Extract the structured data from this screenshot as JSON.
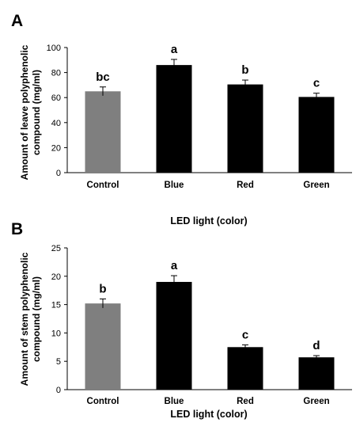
{
  "chart_data": [
    {
      "panel": "A",
      "type": "bar",
      "categories": [
        "Control",
        "Blue",
        "Red",
        "Green"
      ],
      "values": [
        65,
        86,
        70.5,
        60.5
      ],
      "errors": [
        3.5,
        4.5,
        3.5,
        3
      ],
      "letters": [
        "bc",
        "a",
        "b",
        "c"
      ],
      "colors": [
        "#7f7f7f",
        "#000000",
        "#000000",
        "#000000"
      ],
      "ylabel_lines": [
        "Amount of leave polyphenolic",
        "compound (mg/ml)"
      ],
      "xlabel": "LED light (color)",
      "ylim": [
        0,
        100
      ],
      "yticks": [
        0,
        20,
        40,
        60,
        80,
        100
      ],
      "grid": false
    },
    {
      "panel": "B",
      "type": "bar",
      "categories": [
        "Control",
        "Blue",
        "Red",
        "Green"
      ],
      "values": [
        15.2,
        19,
        7.5,
        5.7
      ],
      "errors": [
        0.8,
        1.1,
        0.4,
        0.3
      ],
      "letters": [
        "b",
        "a",
        "c",
        "d"
      ],
      "colors": [
        "#7f7f7f",
        "#000000",
        "#000000",
        "#000000"
      ],
      "ylabel_lines": [
        "Amount of stem polyphenolic",
        "compound (mg/ml)"
      ],
      "xlabel": "LED light (color)",
      "ylim": [
        0,
        25
      ],
      "yticks": [
        0,
        5,
        10,
        15,
        20,
        25
      ],
      "grid": false
    }
  ]
}
